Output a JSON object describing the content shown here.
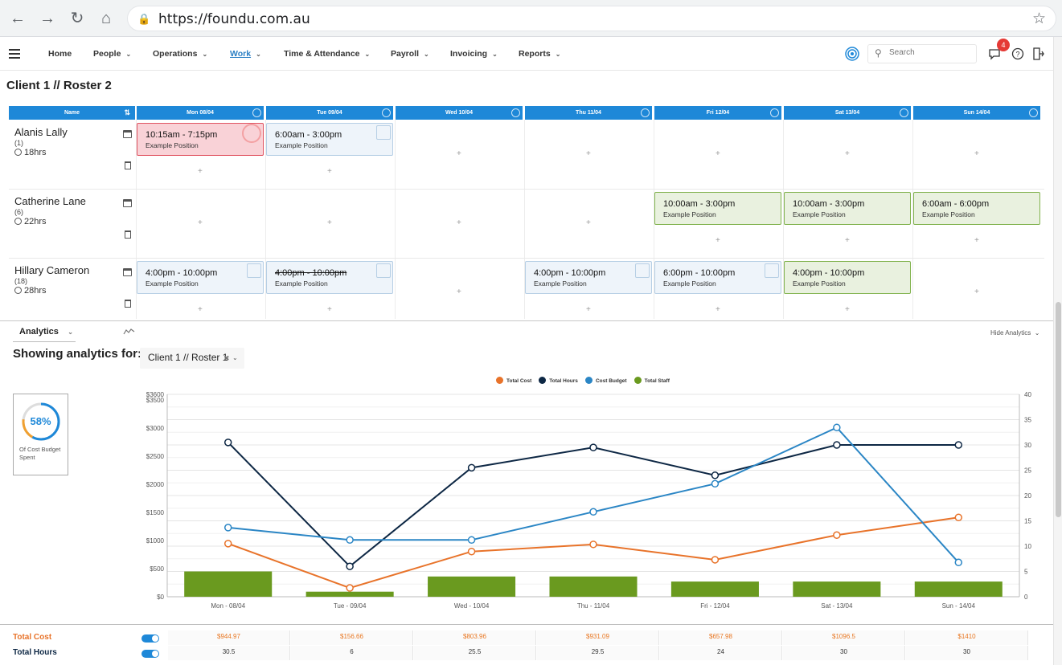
{
  "browser": {
    "url": "https://foundu.com.au"
  },
  "nav": {
    "items": [
      {
        "label": "Home",
        "dropdown": false
      },
      {
        "label": "People",
        "dropdown": true
      },
      {
        "label": "Operations",
        "dropdown": true
      },
      {
        "label": "Work",
        "dropdown": true,
        "active": true
      },
      {
        "label": "Time & Attendance",
        "dropdown": true
      },
      {
        "label": "Payroll",
        "dropdown": true
      },
      {
        "label": "Invoicing",
        "dropdown": true
      },
      {
        "label": "Reports",
        "dropdown": true
      }
    ],
    "search_placeholder": "Search",
    "notification_count": "4"
  },
  "page_title": "Client 1 // Roster 2",
  "roster": {
    "name_header": "Name",
    "days": [
      "Mon 08/04",
      "Tue 09/04",
      "Wed 10/04",
      "Thu 11/04",
      "Fri 12/04",
      "Sat 13/04",
      "Sun 14/04"
    ],
    "employees": [
      {
        "name": "Alanis Lally",
        "code": "(1)",
        "hours": "18hrs",
        "shifts": [
          {
            "day": 0,
            "time": "10:15am  -  7:15pm",
            "position": "Example Position",
            "style": "red"
          },
          {
            "day": 1,
            "time": "6:00am  -  3:00pm",
            "position": "Example Position",
            "style": "blue"
          }
        ]
      },
      {
        "name": "Catherine Lane",
        "code": "(6)",
        "hours": "22hrs",
        "shifts": [
          {
            "day": 4,
            "time": "10:00am  -  3:00pm",
            "position": "Example Position",
            "style": "green"
          },
          {
            "day": 5,
            "time": "10:00am  -  3:00pm",
            "position": "Example Position",
            "style": "green"
          },
          {
            "day": 6,
            "time": "6:00am  -  6:00pm",
            "position": "Example Position",
            "style": "green"
          }
        ]
      },
      {
        "name": "Hillary Cameron",
        "code": "(18)",
        "hours": "28hrs",
        "shifts": [
          {
            "day": 0,
            "time": "4:00pm  -  10:00pm",
            "position": "Example Position",
            "style": "blue"
          },
          {
            "day": 1,
            "time": "4:00pm  -  10:00pm",
            "position": "Example Position",
            "style": "blue",
            "struck": true
          },
          {
            "day": 3,
            "time": "4:00pm  -  10:00pm",
            "position": "Example Position",
            "style": "blue"
          },
          {
            "day": 4,
            "time": "6:00pm  -  10:00pm",
            "position": "Example Position",
            "style": "blue"
          },
          {
            "day": 5,
            "time": "4:00pm  -  10:00pm",
            "position": "Example Position",
            "style": "green"
          }
        ]
      }
    ]
  },
  "analytics": {
    "tab_label": "Analytics",
    "hide_label": "Hide Analytics",
    "showing_label": "Showing analytics for:",
    "selected_roster": "Client 1 // Roster 1",
    "budget_percent": "58%",
    "budget_fraction": 0.58,
    "budget_label": "Of Cost Budget Spent"
  },
  "chart_data": {
    "type": "line",
    "categories": [
      "Mon - 08/04",
      "Tue - 09/04",
      "Wed - 10/04",
      "Thu - 11/04",
      "Fri - 12/04",
      "Sat - 13/04",
      "Sun - 14/04"
    ],
    "left_axis": {
      "ticks": [
        "$0",
        "$500",
        "$1000",
        "$1500",
        "$2000",
        "$2500",
        "$3000",
        "$3500",
        "$3600"
      ],
      "ylim": [
        0,
        3600
      ]
    },
    "right_axis": {
      "ticks": [
        "0",
        "5",
        "10",
        "15",
        "20",
        "25",
        "30",
        "35",
        "40"
      ],
      "ylim": [
        0,
        40
      ]
    },
    "grid": true,
    "legend_position": "top-center",
    "series": [
      {
        "name": "Total Cost",
        "axis": "left",
        "kind": "line",
        "color": "#e8732a",
        "values": [
          944.97,
          156.66,
          803.96,
          931.09,
          657.98,
          1096.5,
          1410
        ]
      },
      {
        "name": "Total Hours",
        "axis": "right",
        "kind": "line",
        "color": "#0d2744",
        "values": [
          30.5,
          6,
          25.5,
          29.5,
          24,
          30,
          30
        ]
      },
      {
        "name": "Cost Budget",
        "axis": "left",
        "kind": "line",
        "color": "#2b86c5",
        "values": [
          1230,
          1010,
          1010,
          1510,
          2010,
          3010,
          610
        ]
      },
      {
        "name": "Total Staff",
        "axis": "right",
        "kind": "bar",
        "color": "#6a9a1f",
        "values": [
          5,
          1,
          4,
          4,
          3,
          3,
          3
        ]
      }
    ]
  },
  "summary": {
    "rows": [
      {
        "label": "Total Cost",
        "color": "#e8732a",
        "values": [
          "$944.97",
          "$156.66",
          "$803.96",
          "$931.09",
          "$657.98",
          "$1096.5",
          "$1410"
        ]
      },
      {
        "label": "Total Hours",
        "color": "#0d2744",
        "values": [
          "30.5",
          "6",
          "25.5",
          "29.5",
          "24",
          "30",
          "30"
        ]
      }
    ]
  }
}
